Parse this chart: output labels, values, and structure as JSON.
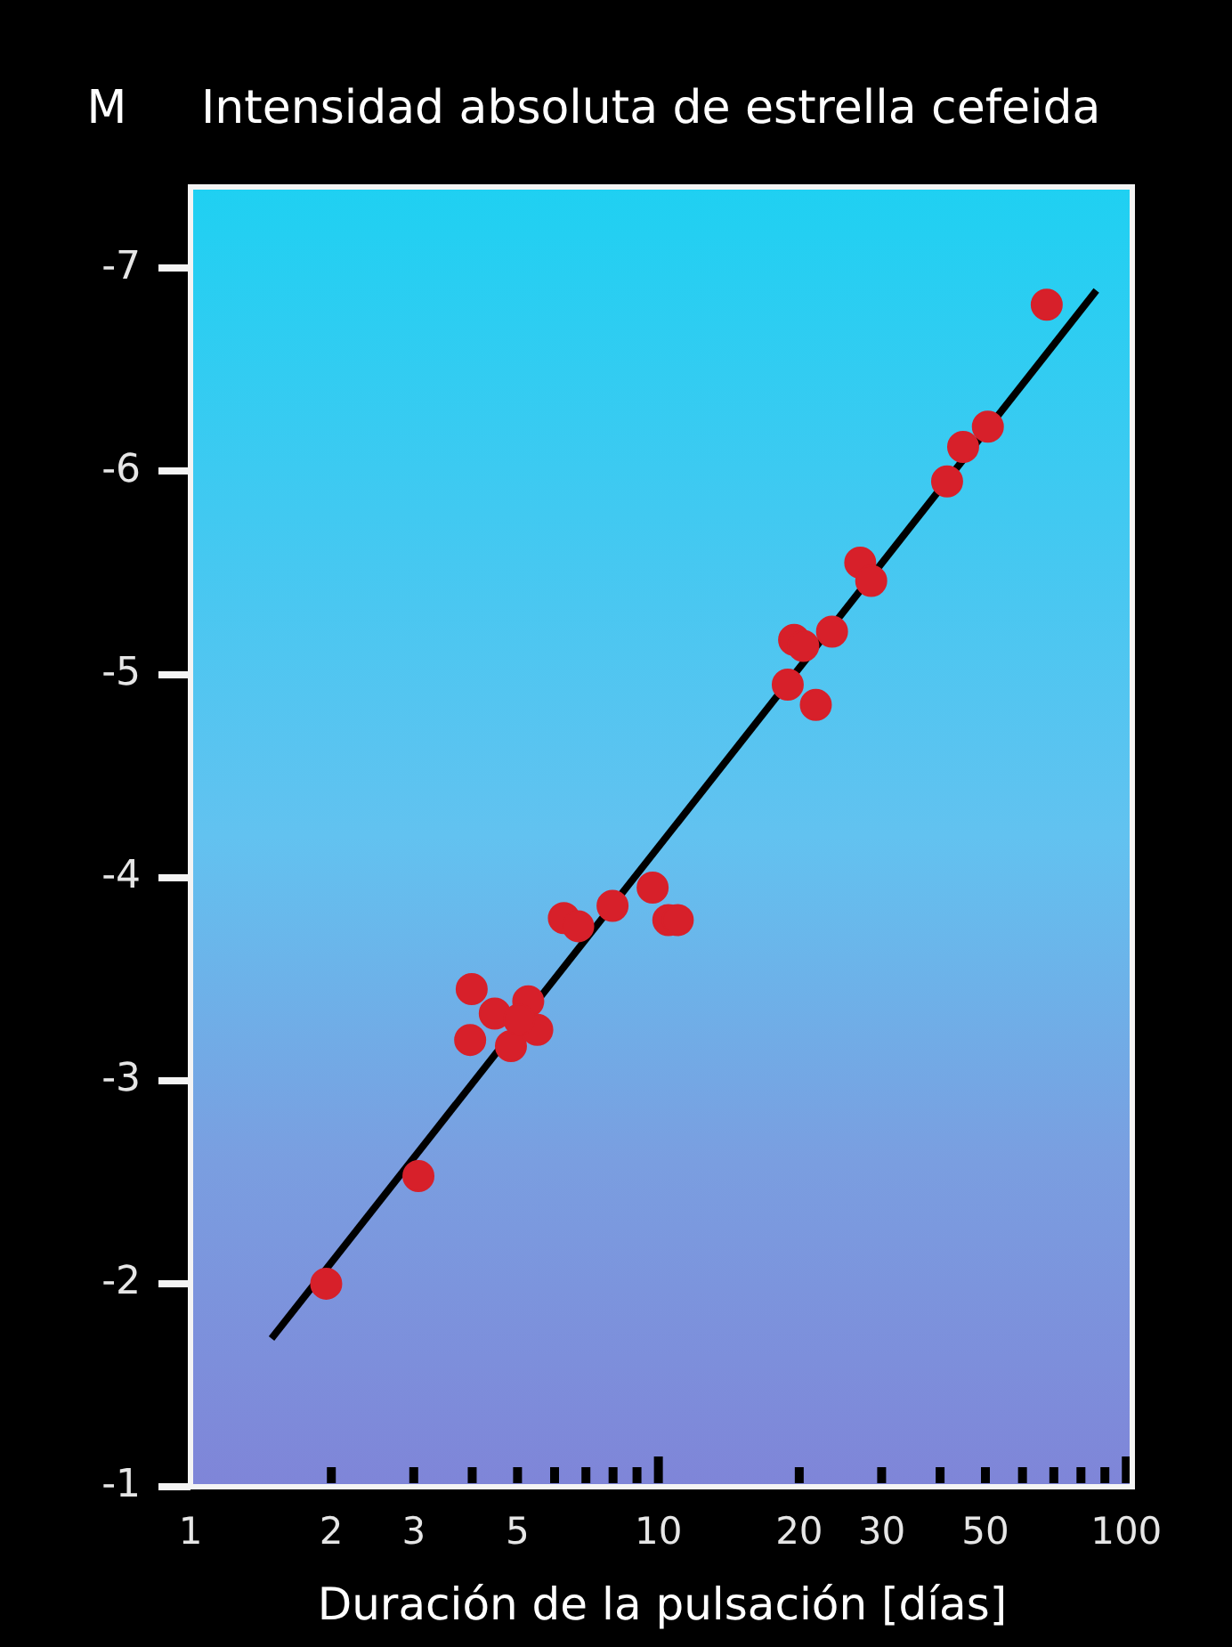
{
  "chart_data": {
    "type": "scatter",
    "title": "Intensidad absoluta de estrella cefeida",
    "ylabel": "M",
    "xlabel": "Duración de la pulsación [días]",
    "log": "x",
    "xlim": [
      1,
      103
    ],
    "ylim": [
      -1,
      -7.4
    ],
    "xticks": [
      1,
      2,
      3,
      {
        "value": 4,
        "label": null
      },
      5,
      {
        "value": 6,
        "label": null
      },
      {
        "value": 7,
        "label": null
      },
      {
        "value": 8,
        "label": null
      },
      {
        "value": 9,
        "label": null
      },
      10,
      20,
      30,
      {
        "value": 40,
        "label": null
      },
      50,
      {
        "value": 60,
        "label": null
      },
      {
        "value": 70,
        "label": null
      },
      {
        "value": 80,
        "label": null
      },
      {
        "value": 90,
        "label": null
      },
      100
    ],
    "yticks": [
      -1,
      -2,
      -3,
      -4,
      -5,
      -6,
      -7
    ],
    "legend": false,
    "series": [
      {
        "marker": "circle",
        "color": "#d7202a",
        "x": [
          1.95,
          3.07,
          3.99,
          3.96,
          4.47,
          4.84,
          5.27,
          5.51,
          5.04,
          6.28,
          6.74,
          7.98,
          9.72,
          10.5,
          11.0,
          18.9,
          21.7,
          19.5,
          20.4,
          23.5,
          27.0,
          28.5,
          41.4,
          44.8,
          50.6,
          67.6
        ],
        "values": [
          -2.0,
          -2.53,
          -3.45,
          -3.2,
          -3.33,
          -3.17,
          -3.39,
          -3.25,
          -3.3,
          -3.8,
          -3.76,
          -3.86,
          -3.95,
          -3.79,
          -3.79,
          -4.95,
          -4.85,
          -5.17,
          -5.14,
          -5.21,
          -5.55,
          -5.46,
          -5.95,
          -6.12,
          -6.22,
          -6.82
        ]
      },
      {
        "type": "line",
        "color": "#000000",
        "x": [
          1.49,
          86.3
        ],
        "values": [
          -1.73,
          -6.89
        ]
      }
    ]
  }
}
